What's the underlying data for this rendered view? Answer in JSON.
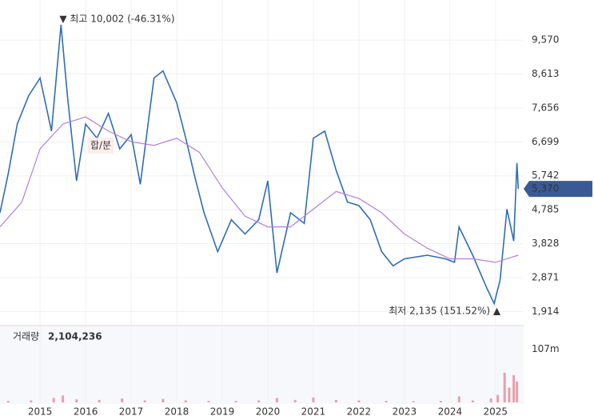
{
  "chart_data": {
    "type": "line",
    "grid": true,
    "xlim": [
      2014.12,
      2025.6
    ],
    "xticks": [
      2015,
      2016,
      2017,
      2018,
      2019,
      2020,
      2021,
      2022,
      2023,
      2024,
      2025
    ],
    "ylim": [
      1560,
      10700
    ],
    "yticks": [
      {
        "value": 9570,
        "label": "9,570"
      },
      {
        "value": 8613,
        "label": "8,613"
      },
      {
        "value": 7656,
        "label": "7,656"
      },
      {
        "value": 6699,
        "label": "6,699"
      },
      {
        "value": 5742,
        "label": "5,742"
      },
      {
        "value": 4785,
        "label": "4,785"
      },
      {
        "value": 3828,
        "label": "3,828"
      },
      {
        "value": 2871,
        "label": "2,871"
      },
      {
        "value": 1914,
        "label": "1,914"
      }
    ],
    "y2lim": [
      0,
      150000000
    ],
    "y2ticks": [
      {
        "value": 107000000,
        "label": "107m"
      }
    ],
    "series": [
      {
        "color": "#2f6db5",
        "x": [
          2014.12,
          2014.3,
          2014.5,
          2014.75,
          2015.0,
          2015.25,
          2015.46,
          2015.6,
          2015.8,
          2016.0,
          2016.25,
          2016.5,
          2016.75,
          2017.0,
          2017.2,
          2017.5,
          2017.7,
          2018.0,
          2018.2,
          2018.4,
          2018.6,
          2018.9,
          2019.2,
          2019.5,
          2019.8,
          2020.0,
          2020.2,
          2020.5,
          2020.8,
          2021.0,
          2021.25,
          2021.5,
          2021.75,
          2022.0,
          2022.25,
          2022.5,
          2022.75,
          2023.0,
          2023.5,
          2023.9,
          2024.1,
          2024.2,
          2024.5,
          2024.8,
          2024.97,
          2025.1,
          2025.25,
          2025.4,
          2025.47,
          2025.5
        ],
        "values": [
          4700,
          5800,
          7200,
          8000,
          8500,
          7000,
          10002,
          8000,
          5600,
          7200,
          6800,
          7500,
          6500,
          6900,
          5500,
          8500,
          8700,
          7800,
          6800,
          5700,
          4700,
          3600,
          4500,
          4100,
          4500,
          5600,
          3000,
          4700,
          4400,
          6800,
          7000,
          5900,
          5000,
          4900,
          4500,
          3600,
          3200,
          3400,
          3500,
          3400,
          3300,
          4300,
          3500,
          2600,
          2135,
          2800,
          4800,
          3900,
          6100,
          5370
        ]
      },
      {
        "color": "#b57edc",
        "x": [
          2014.12,
          2014.6,
          2015.0,
          2015.5,
          2016.0,
          2016.5,
          2017.0,
          2017.5,
          2018.0,
          2018.5,
          2019.0,
          2019.5,
          2020.0,
          2020.5,
          2021.0,
          2021.5,
          2022.0,
          2022.5,
          2023.0,
          2023.5,
          2024.0,
          2024.5,
          2025.0,
          2025.5
        ],
        "values": [
          4300,
          5000,
          6500,
          7200,
          7400,
          7000,
          6700,
          6600,
          6800,
          6400,
          5400,
          4600,
          4300,
          4300,
          4800,
          5300,
          5100,
          4700,
          4100,
          3700,
          3400,
          3400,
          3300,
          3500
        ]
      },
      {
        "name": "거래량",
        "type": "bar",
        "axis": "y2",
        "color": "#e8a0a8",
        "x": [
          2014.3,
          2014.8,
          2015.3,
          2015.5,
          2015.8,
          2016.3,
          2016.8,
          2017.3,
          2017.7,
          2018.2,
          2018.7,
          2019.3,
          2019.8,
          2020.2,
          2020.6,
          2021.0,
          2021.5,
          2022.0,
          2022.6,
          2023.2,
          2023.8,
          2024.2,
          2024.5,
          2024.9,
          2025.05,
          2025.2,
          2025.3,
          2025.4,
          2025.47
        ],
        "values": [
          3000000,
          4000000,
          9000000,
          14000000,
          6000000,
          5000000,
          8000000,
          4000000,
          7000000,
          4000000,
          3000000,
          3000000,
          4000000,
          9000000,
          5000000,
          10000000,
          5000000,
          4000000,
          3000000,
          2500000,
          3000000,
          12000000,
          4000000,
          8000000,
          15000000,
          60000000,
          30000000,
          55000000,
          42000000
        ]
      }
    ],
    "volume_value": "2,104,236",
    "last_price_label": "5,370",
    "annotations": [
      "▼ 최고 10,002 (-46.31%)",
      "최저 2,135 (151.52%) ▲"
    ],
    "overlay_label": "합/분"
  }
}
